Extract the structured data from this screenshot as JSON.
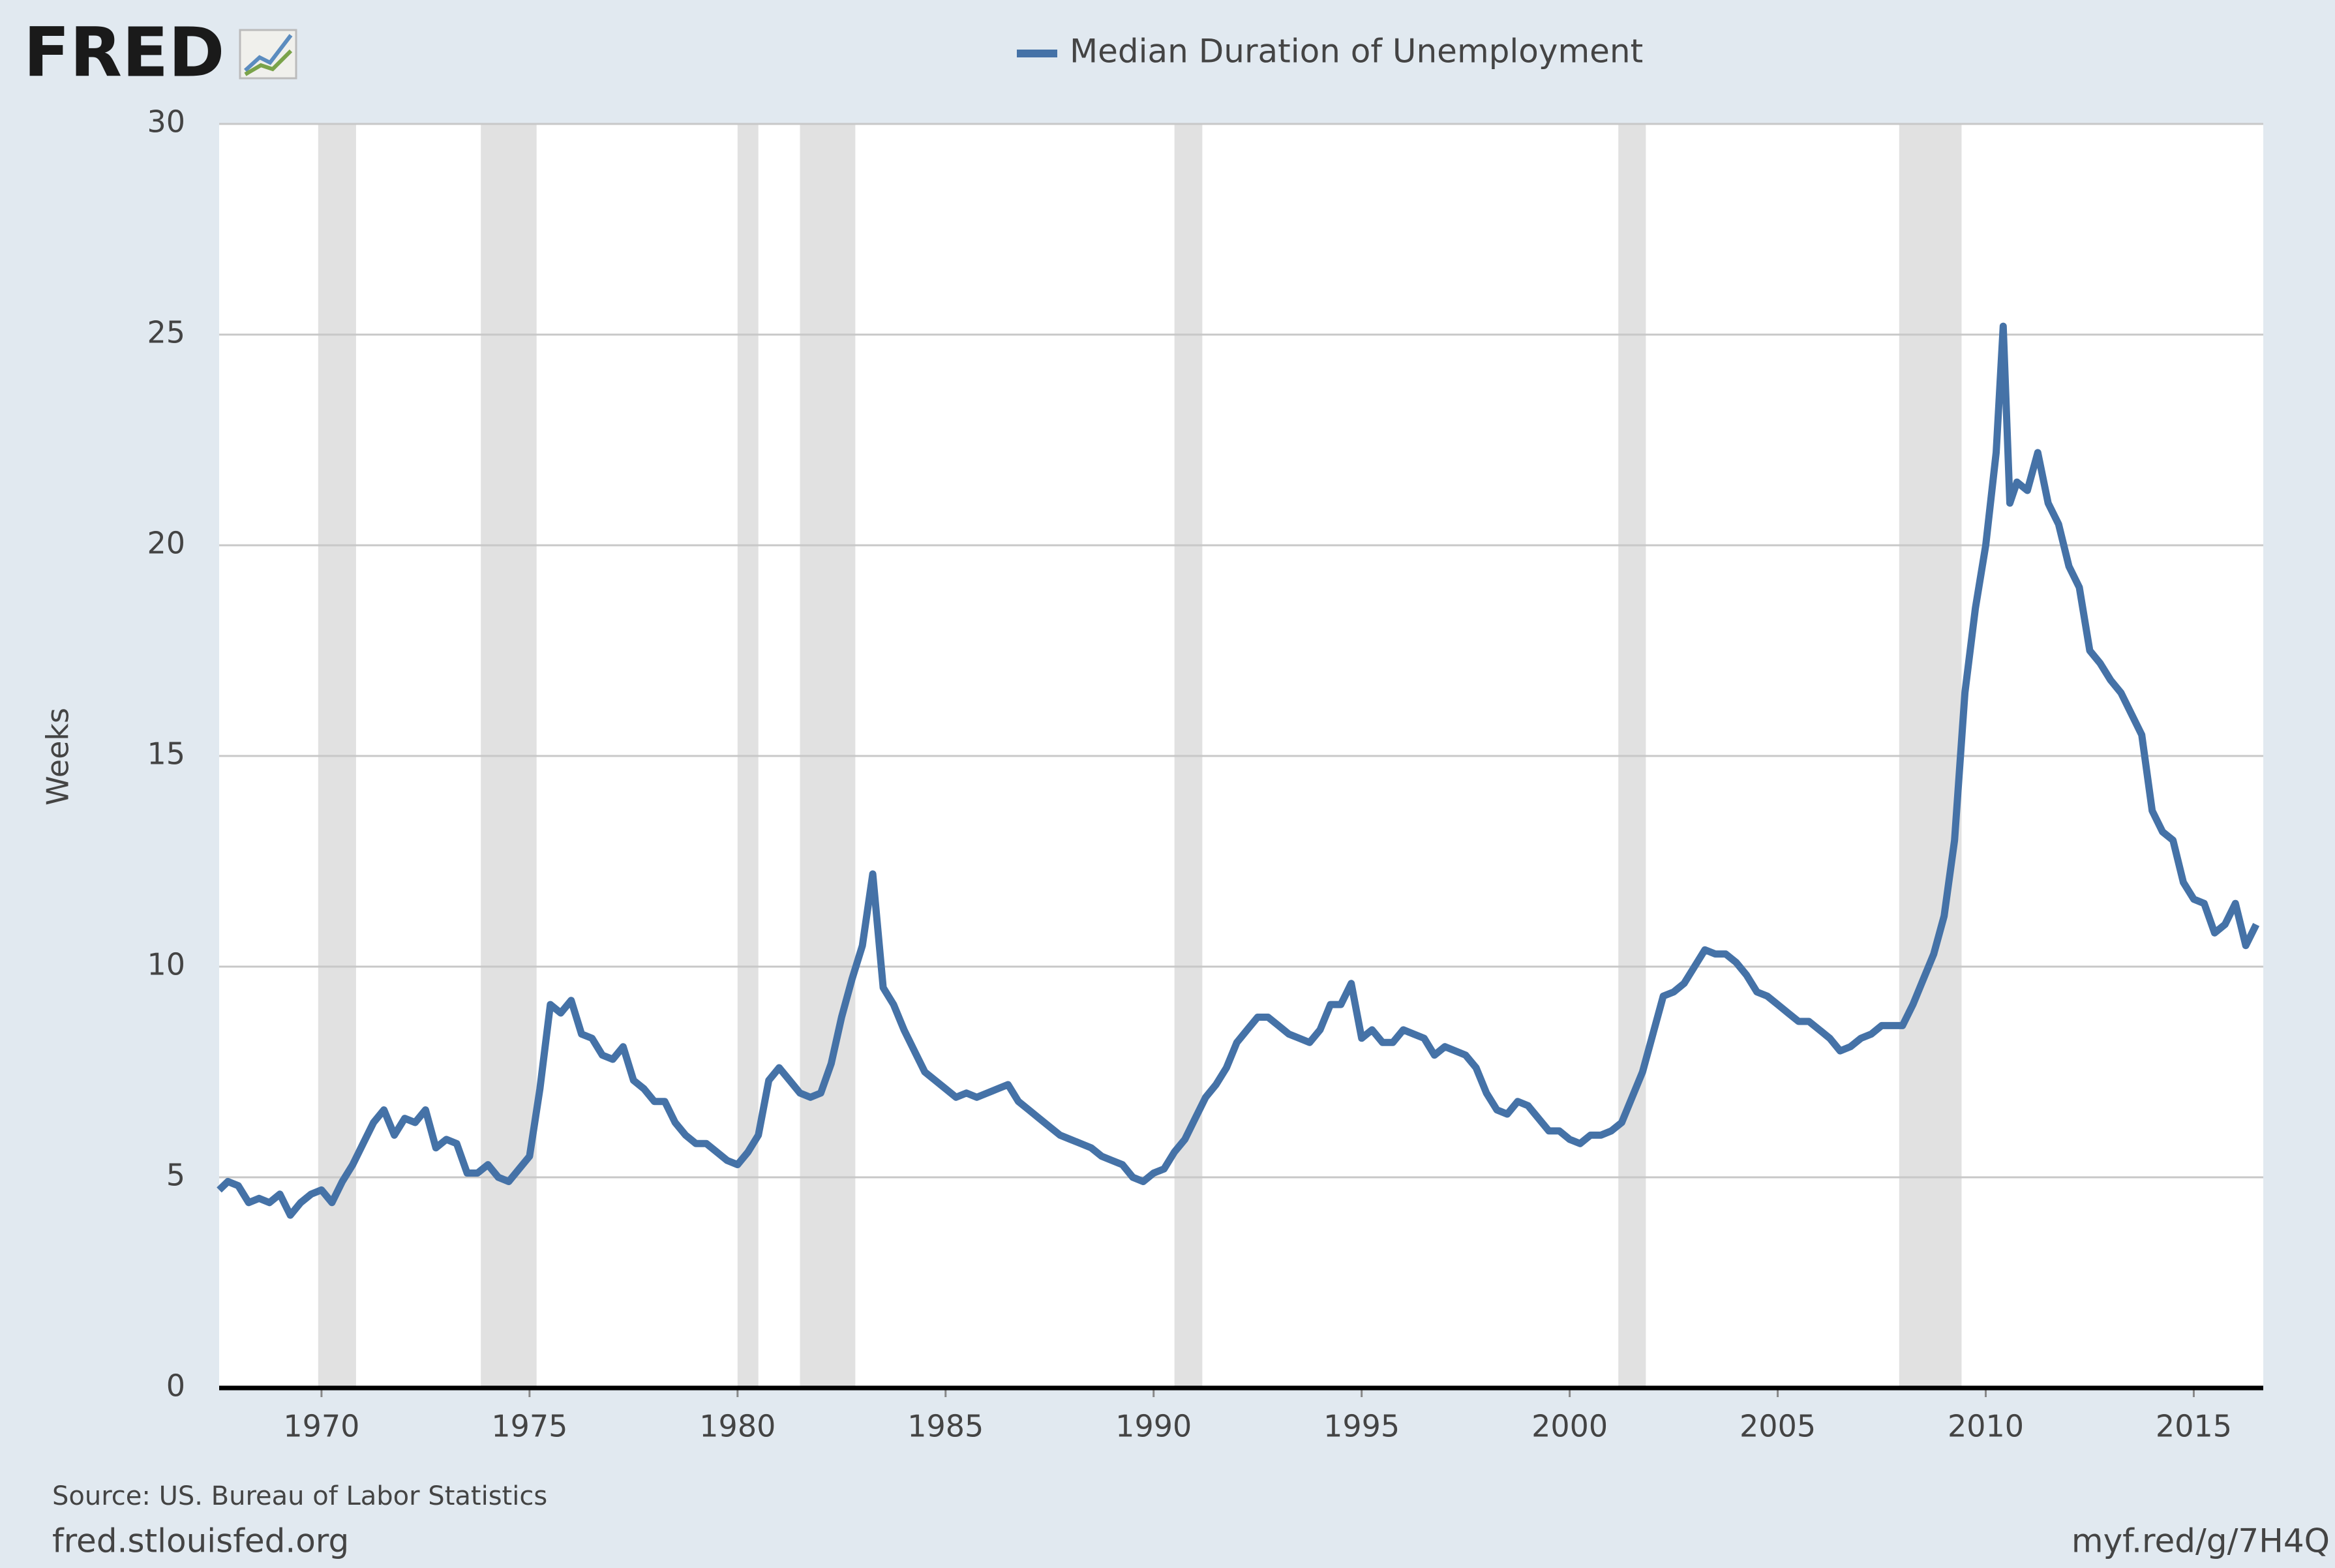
{
  "logo": "FRED",
  "chart_data": {
    "type": "line",
    "ylabel": "Weeks",
    "source": "Source: US. Bureau of Labor Statistics",
    "site": "fred.stlouisfed.org",
    "link": "myf.red/g/7H4Q",
    "xlim": [
      1967.54,
      2016.67
    ],
    "xticks": [
      1970,
      1975,
      1980,
      1985,
      1990,
      1995,
      2000,
      2005,
      2010,
      2015
    ],
    "ylim": [
      0,
      30
    ],
    "yticks": [
      0,
      5,
      10,
      15,
      20,
      25,
      30
    ],
    "grid": true,
    "recessions": [
      [
        1969.92,
        1970.83
      ],
      [
        1973.83,
        1975.17
      ],
      [
        1980.0,
        1980.5
      ],
      [
        1981.5,
        1982.83
      ],
      [
        1990.5,
        1991.17
      ],
      [
        2001.17,
        2001.83
      ],
      [
        2007.92,
        2009.42
      ]
    ],
    "x": [
      1967.5,
      1967.75,
      1968.0,
      1968.25,
      1968.5,
      1968.75,
      1969.0,
      1969.25,
      1969.5,
      1969.75,
      1970.0,
      1970.25,
      1970.5,
      1970.75,
      1971.0,
      1971.25,
      1971.5,
      1971.75,
      1972.0,
      1972.25,
      1972.5,
      1972.75,
      1973.0,
      1973.25,
      1973.5,
      1973.75,
      1974.0,
      1974.25,
      1974.5,
      1974.75,
      1975.0,
      1975.25,
      1975.5,
      1975.75,
      1976.0,
      1976.25,
      1976.5,
      1976.75,
      1977.0,
      1977.25,
      1977.5,
      1977.75,
      1978.0,
      1978.25,
      1978.5,
      1978.75,
      1979.0,
      1979.25,
      1979.5,
      1979.75,
      1980.0,
      1980.25,
      1980.5,
      1980.75,
      1981.0,
      1981.25,
      1981.5,
      1981.75,
      1982.0,
      1982.25,
      1982.5,
      1982.75,
      1983.0,
      1983.25,
      1983.5,
      1983.75,
      1984.0,
      1984.25,
      1984.5,
      1984.75,
      1985.0,
      1985.25,
      1985.5,
      1985.75,
      1986.0,
      1986.25,
      1986.5,
      1986.75,
      1987.0,
      1987.25,
      1987.5,
      1987.75,
      1988.0,
      1988.25,
      1988.5,
      1988.75,
      1989.0,
      1989.25,
      1989.5,
      1989.75,
      1990.0,
      1990.25,
      1990.5,
      1990.75,
      1991.0,
      1991.25,
      1991.5,
      1991.75,
      1992.0,
      1992.25,
      1992.5,
      1992.75,
      1993.0,
      1993.25,
      1993.5,
      1993.75,
      1994.0,
      1994.25,
      1994.5,
      1994.75,
      1995.0,
      1995.25,
      1995.5,
      1995.75,
      1996.0,
      1996.25,
      1996.5,
      1996.75,
      1997.0,
      1997.25,
      1997.5,
      1997.75,
      1998.0,
      1998.25,
      1998.5,
      1998.75,
      1999.0,
      1999.25,
      1999.5,
      1999.75,
      2000.0,
      2000.25,
      2000.5,
      2000.75,
      2001.0,
      2001.25,
      2001.5,
      2001.75,
      2002.0,
      2002.25,
      2002.5,
      2002.75,
      2003.0,
      2003.25,
      2003.5,
      2003.75,
      2004.0,
      2004.25,
      2004.5,
      2004.75,
      2005.0,
      2005.25,
      2005.5,
      2005.75,
      2006.0,
      2006.25,
      2006.5,
      2006.75,
      2007.0,
      2007.25,
      2007.5,
      2007.75,
      2008.0,
      2008.25,
      2008.5,
      2008.75,
      2009.0,
      2009.25,
      2009.5,
      2009.75,
      2010.0,
      2010.25,
      2010.42,
      2010.58,
      2010.75,
      2011.0,
      2011.25,
      2011.5,
      2011.75,
      2012.0,
      2012.25,
      2012.5,
      2012.75,
      2013.0,
      2013.25,
      2013.5,
      2013.75,
      2014.0,
      2014.25,
      2014.5,
      2014.75,
      2015.0,
      2015.25,
      2015.5,
      2015.75,
      2016.0,
      2016.25,
      2016.5
    ],
    "series": [
      {
        "name": "Median Duration of Unemployment",
        "color": "#4572a7",
        "values": [
          4.7,
          4.9,
          4.8,
          4.4,
          4.5,
          4.4,
          4.6,
          4.1,
          4.4,
          4.6,
          4.7,
          4.4,
          4.9,
          5.3,
          5.8,
          6.3,
          6.6,
          6.0,
          6.4,
          6.3,
          6.6,
          5.7,
          5.9,
          5.8,
          5.1,
          5.1,
          5.3,
          5.0,
          4.9,
          5.2,
          5.5,
          7.1,
          9.1,
          8.9,
          9.2,
          8.4,
          8.3,
          7.9,
          7.8,
          8.1,
          7.3,
          7.1,
          6.8,
          6.8,
          6.3,
          6.0,
          5.8,
          5.8,
          5.6,
          5.4,
          5.3,
          5.6,
          6.0,
          7.3,
          7.6,
          7.3,
          7.0,
          6.9,
          7.0,
          7.7,
          8.8,
          9.7,
          10.5,
          12.2,
          9.5,
          9.1,
          8.5,
          8.0,
          7.5,
          7.3,
          7.1,
          6.9,
          7.0,
          6.9,
          7.0,
          7.1,
          7.2,
          6.8,
          6.6,
          6.4,
          6.2,
          6.0,
          5.9,
          5.8,
          5.7,
          5.5,
          5.4,
          5.3,
          5.0,
          4.9,
          5.1,
          5.2,
          5.6,
          5.9,
          6.4,
          6.9,
          7.2,
          7.6,
          8.2,
          8.5,
          8.8,
          8.8,
          8.6,
          8.4,
          8.3,
          8.2,
          8.5,
          9.1,
          9.1,
          9.6,
          8.3,
          8.5,
          8.2,
          8.2,
          8.5,
          8.4,
          8.3,
          7.9,
          8.1,
          8.0,
          7.9,
          7.6,
          7.0,
          6.6,
          6.5,
          6.8,
          6.7,
          6.4,
          6.1,
          6.1,
          5.9,
          5.8,
          6.0,
          6.0,
          6.1,
          6.3,
          6.9,
          7.5,
          8.4,
          9.3,
          9.4,
          9.6,
          10.0,
          10.4,
          10.3,
          10.3,
          10.1,
          9.8,
          9.4,
          9.3,
          9.1,
          8.9,
          8.7,
          8.7,
          8.5,
          8.3,
          8.0,
          8.1,
          8.3,
          8.4,
          8.6,
          8.6,
          8.6,
          9.1,
          9.7,
          10.3,
          11.2,
          13.0,
          16.5,
          18.5,
          20.0,
          22.2,
          25.2,
          21.0,
          21.5,
          21.3,
          22.2,
          21.0,
          20.5,
          19.5,
          19.0,
          17.5,
          17.2,
          16.8,
          16.5,
          16.0,
          15.5,
          13.7,
          13.2,
          13.0,
          12.0,
          11.6,
          11.5,
          10.8,
          11.0,
          11.5,
          10.5,
          11.0
        ]
      }
    ]
  }
}
